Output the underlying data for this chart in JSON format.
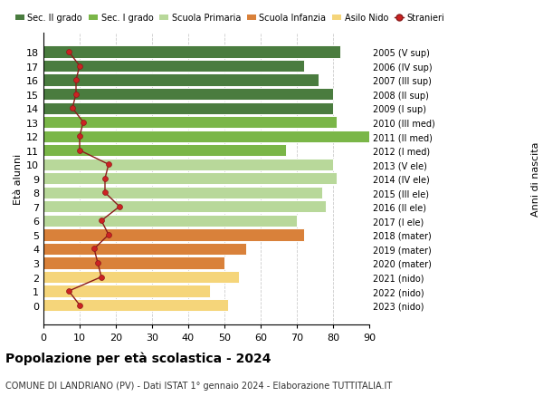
{
  "ages": [
    18,
    17,
    16,
    15,
    14,
    13,
    12,
    11,
    10,
    9,
    8,
    7,
    6,
    5,
    4,
    3,
    2,
    1,
    0
  ],
  "right_labels": [
    "2005 (V sup)",
    "2006 (IV sup)",
    "2007 (III sup)",
    "2008 (II sup)",
    "2009 (I sup)",
    "2010 (III med)",
    "2011 (II med)",
    "2012 (I med)",
    "2013 (V ele)",
    "2014 (IV ele)",
    "2015 (III ele)",
    "2016 (II ele)",
    "2017 (I ele)",
    "2018 (mater)",
    "2019 (mater)",
    "2020 (mater)",
    "2021 (nido)",
    "2022 (nido)",
    "2023 (nido)"
  ],
  "bar_values": [
    82,
    72,
    76,
    80,
    80,
    81,
    91,
    67,
    80,
    81,
    77,
    78,
    70,
    72,
    56,
    50,
    54,
    46,
    51
  ],
  "bar_colors": [
    "#4a7c3f",
    "#4a7c3f",
    "#4a7c3f",
    "#4a7c3f",
    "#4a7c3f",
    "#7ab648",
    "#7ab648",
    "#7ab648",
    "#b8d89a",
    "#b8d89a",
    "#b8d89a",
    "#b8d89a",
    "#b8d89a",
    "#d9813a",
    "#d9813a",
    "#d9813a",
    "#f5d57a",
    "#f5d57a",
    "#f5d57a"
  ],
  "stranieri_values": [
    7,
    10,
    9,
    9,
    8,
    11,
    10,
    10,
    18,
    17,
    17,
    21,
    16,
    18,
    14,
    15,
    16,
    7,
    10
  ],
  "legend_labels": [
    "Sec. II grado",
    "Sec. I grado",
    "Scuola Primaria",
    "Scuola Infanzia",
    "Asilo Nido",
    "Stranieri"
  ],
  "legend_colors": [
    "#4a7c3f",
    "#7ab648",
    "#b8d89a",
    "#d9813a",
    "#f5d57a",
    "#b22222"
  ],
  "ylabel_left": "Età alunni",
  "ylabel_right": "Anni di nascita",
  "title": "Popolazione per età scolastica - 2024",
  "subtitle": "COMUNE DI LANDRIANO (PV) - Dati ISTAT 1° gennaio 2024 - Elaborazione TUTTITALIA.IT",
  "xlim": [
    0,
    90
  ],
  "xticks": [
    0,
    10,
    20,
    30,
    40,
    50,
    60,
    70,
    80,
    90
  ]
}
